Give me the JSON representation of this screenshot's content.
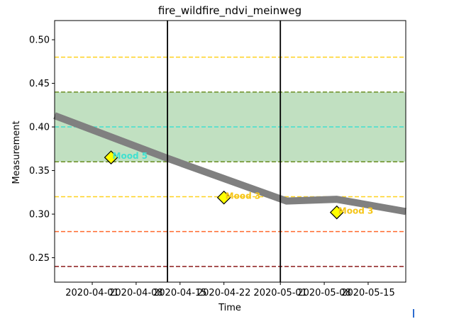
{
  "chart_data": {
    "type": "line",
    "title": "fire_wildfire_ndvi_meinweg",
    "xlabel": "Time",
    "ylabel": "Measurement",
    "xlim": [
      "2020-03-26",
      "2020-05-21"
    ],
    "ylim": [
      0.222,
      0.522
    ],
    "x_ticks": [
      "2020-04-01",
      "2020-04-08",
      "2020-04-15",
      "2020-04-22",
      "2020-05-01",
      "2020-05-08",
      "2020-05-15"
    ],
    "y_ticks": [
      "0.25",
      "0.30",
      "0.35",
      "0.40",
      "0.45",
      "0.50"
    ],
    "grid": false,
    "series": [
      {
        "color": "#808080",
        "x": [
          "2020-03-26",
          "2020-04-13",
          "2020-05-02",
          "2020-05-10",
          "2020-05-21"
        ],
        "y": [
          0.413,
          0.364,
          0.315,
          0.317,
          0.303
        ]
      }
    ],
    "band": {
      "y_min": 0.36,
      "y_max": 0.44,
      "color": "#c1e0c1",
      "edge_color": "#7a8a1e"
    },
    "hlines": [
      {
        "y": 0.48,
        "color": "#ffd21f"
      },
      {
        "y": 0.44,
        "color": "#6b8e23"
      },
      {
        "y": 0.4,
        "color": "#40e0d0"
      },
      {
        "y": 0.36,
        "color": "#6b8e23"
      },
      {
        "y": 0.32,
        "color": "#ffd21f"
      },
      {
        "y": 0.28,
        "color": "#ff6a2e"
      },
      {
        "y": 0.24,
        "color": "#8b1a1a"
      }
    ],
    "vlines": [
      "2020-04-13",
      "2020-05-01"
    ],
    "markers": [
      {
        "x": "2020-04-04",
        "y": 0.365,
        "label": "Mood 5",
        "label_color": "#40e0d0"
      },
      {
        "x": "2020-04-22",
        "y": 0.319,
        "label": "Mood 3",
        "label_color": "#f5c518"
      },
      {
        "x": "2020-05-10",
        "y": 0.302,
        "label": "Mood 3",
        "label_color": "#f5c518"
      }
    ]
  }
}
